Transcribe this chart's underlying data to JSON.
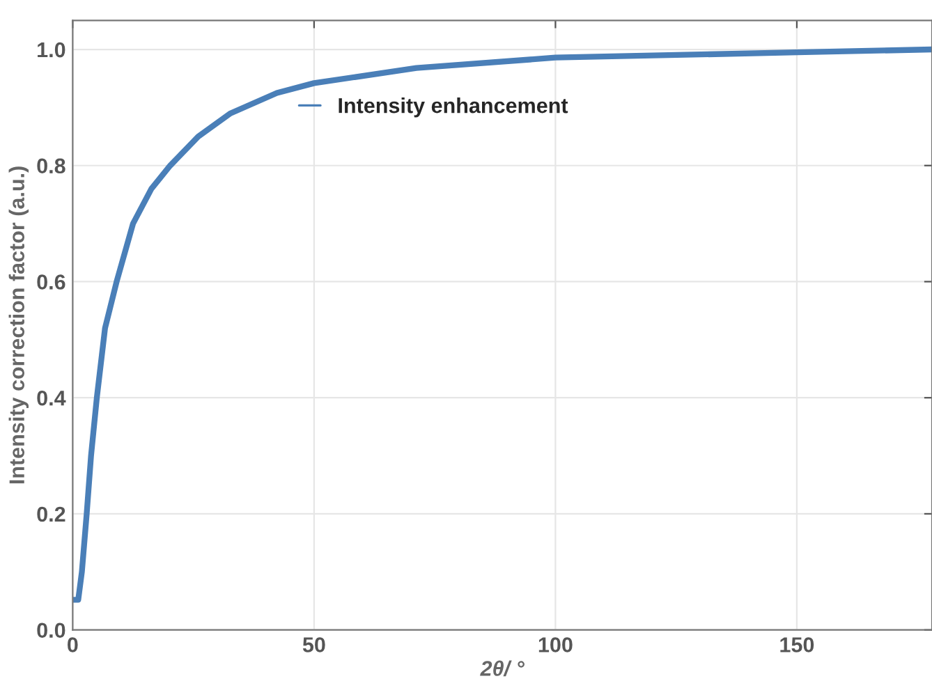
{
  "chart_data": {
    "type": "line",
    "xlabel": "2θ/ °",
    "ylabel": "Intensity correction factor (a.u.)",
    "xlim": [
      0,
      178
    ],
    "ylim": [
      0,
      1.05
    ],
    "xticks": [
      0,
      50,
      100,
      150
    ],
    "yticks": [
      {
        "value": 0,
        "label": "0.0"
      },
      {
        "value": 0.2,
        "label": "0.2"
      },
      {
        "value": 0.4,
        "label": "0.4"
      },
      {
        "value": 0.6,
        "label": "0.6"
      },
      {
        "value": 0.8,
        "label": "0.8"
      },
      {
        "value": 1.0,
        "label": "1.0"
      }
    ],
    "grid": true,
    "legend": "top",
    "line_style": "solid",
    "marker": "none",
    "series": [
      {
        "name": "Intensity enhancement",
        "color": "#4a7fb8",
        "x": [
          0,
          1.15,
          1.9,
          2.9,
          3.8,
          5,
          6.7,
          9.1,
          12.5,
          16.3,
          20.2,
          26,
          32.7,
          42.3,
          50,
          71.2,
          100,
          150,
          178
        ],
        "values": [
          0.052,
          0.052,
          0.1,
          0.2,
          0.3,
          0.4,
          0.52,
          0.6,
          0.7,
          0.76,
          0.8,
          0.85,
          0.89,
          0.925,
          0.942,
          0.968,
          0.986,
          0.995,
          1.0
        ]
      }
    ]
  }
}
